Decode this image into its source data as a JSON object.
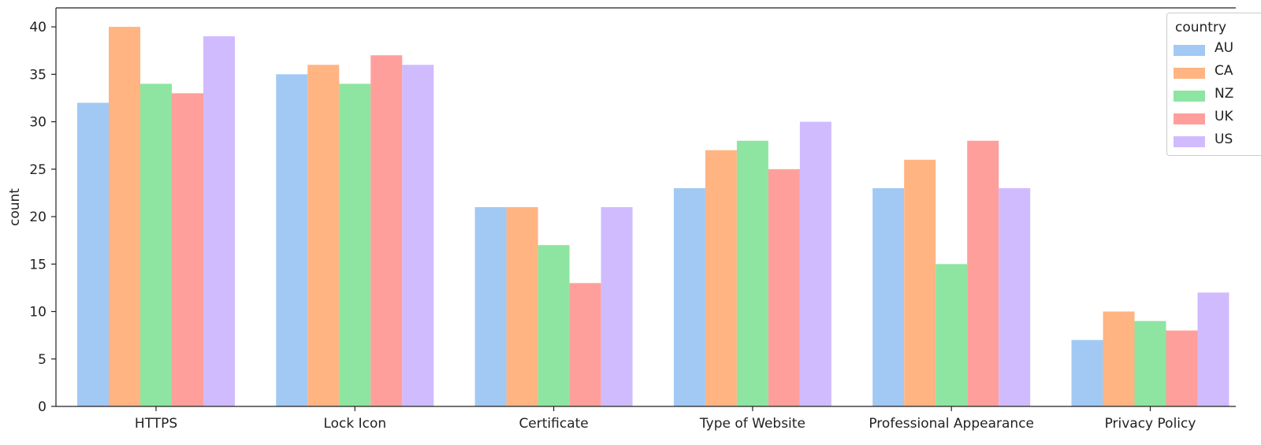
{
  "chart_data": {
    "type": "bar",
    "title": "",
    "xlabel": "",
    "ylabel": "count",
    "ylim": [
      0,
      42
    ],
    "yticks": [
      0,
      5,
      10,
      15,
      20,
      25,
      30,
      35,
      40
    ],
    "categories": [
      "HTTPS",
      "Lock Icon",
      "Certificate",
      "Type of Website",
      "Professional Appearance",
      "Privacy Policy"
    ],
    "legend_title": "country",
    "legend_position": "top-right",
    "grid": false,
    "series": [
      {
        "name": "AU",
        "color": "#a1c9f4",
        "values": [
          32,
          35,
          21,
          23,
          23,
          7
        ]
      },
      {
        "name": "CA",
        "color": "#ffb482",
        "values": [
          40,
          36,
          21,
          27,
          26,
          10
        ]
      },
      {
        "name": "NZ",
        "color": "#8de5a1",
        "values": [
          34,
          34,
          17,
          28,
          15,
          9
        ]
      },
      {
        "name": "UK",
        "color": "#ff9f9b",
        "values": [
          33,
          37,
          13,
          25,
          28,
          8
        ]
      },
      {
        "name": "US",
        "color": "#d0bbff",
        "values": [
          39,
          36,
          21,
          30,
          23,
          12
        ]
      }
    ]
  }
}
